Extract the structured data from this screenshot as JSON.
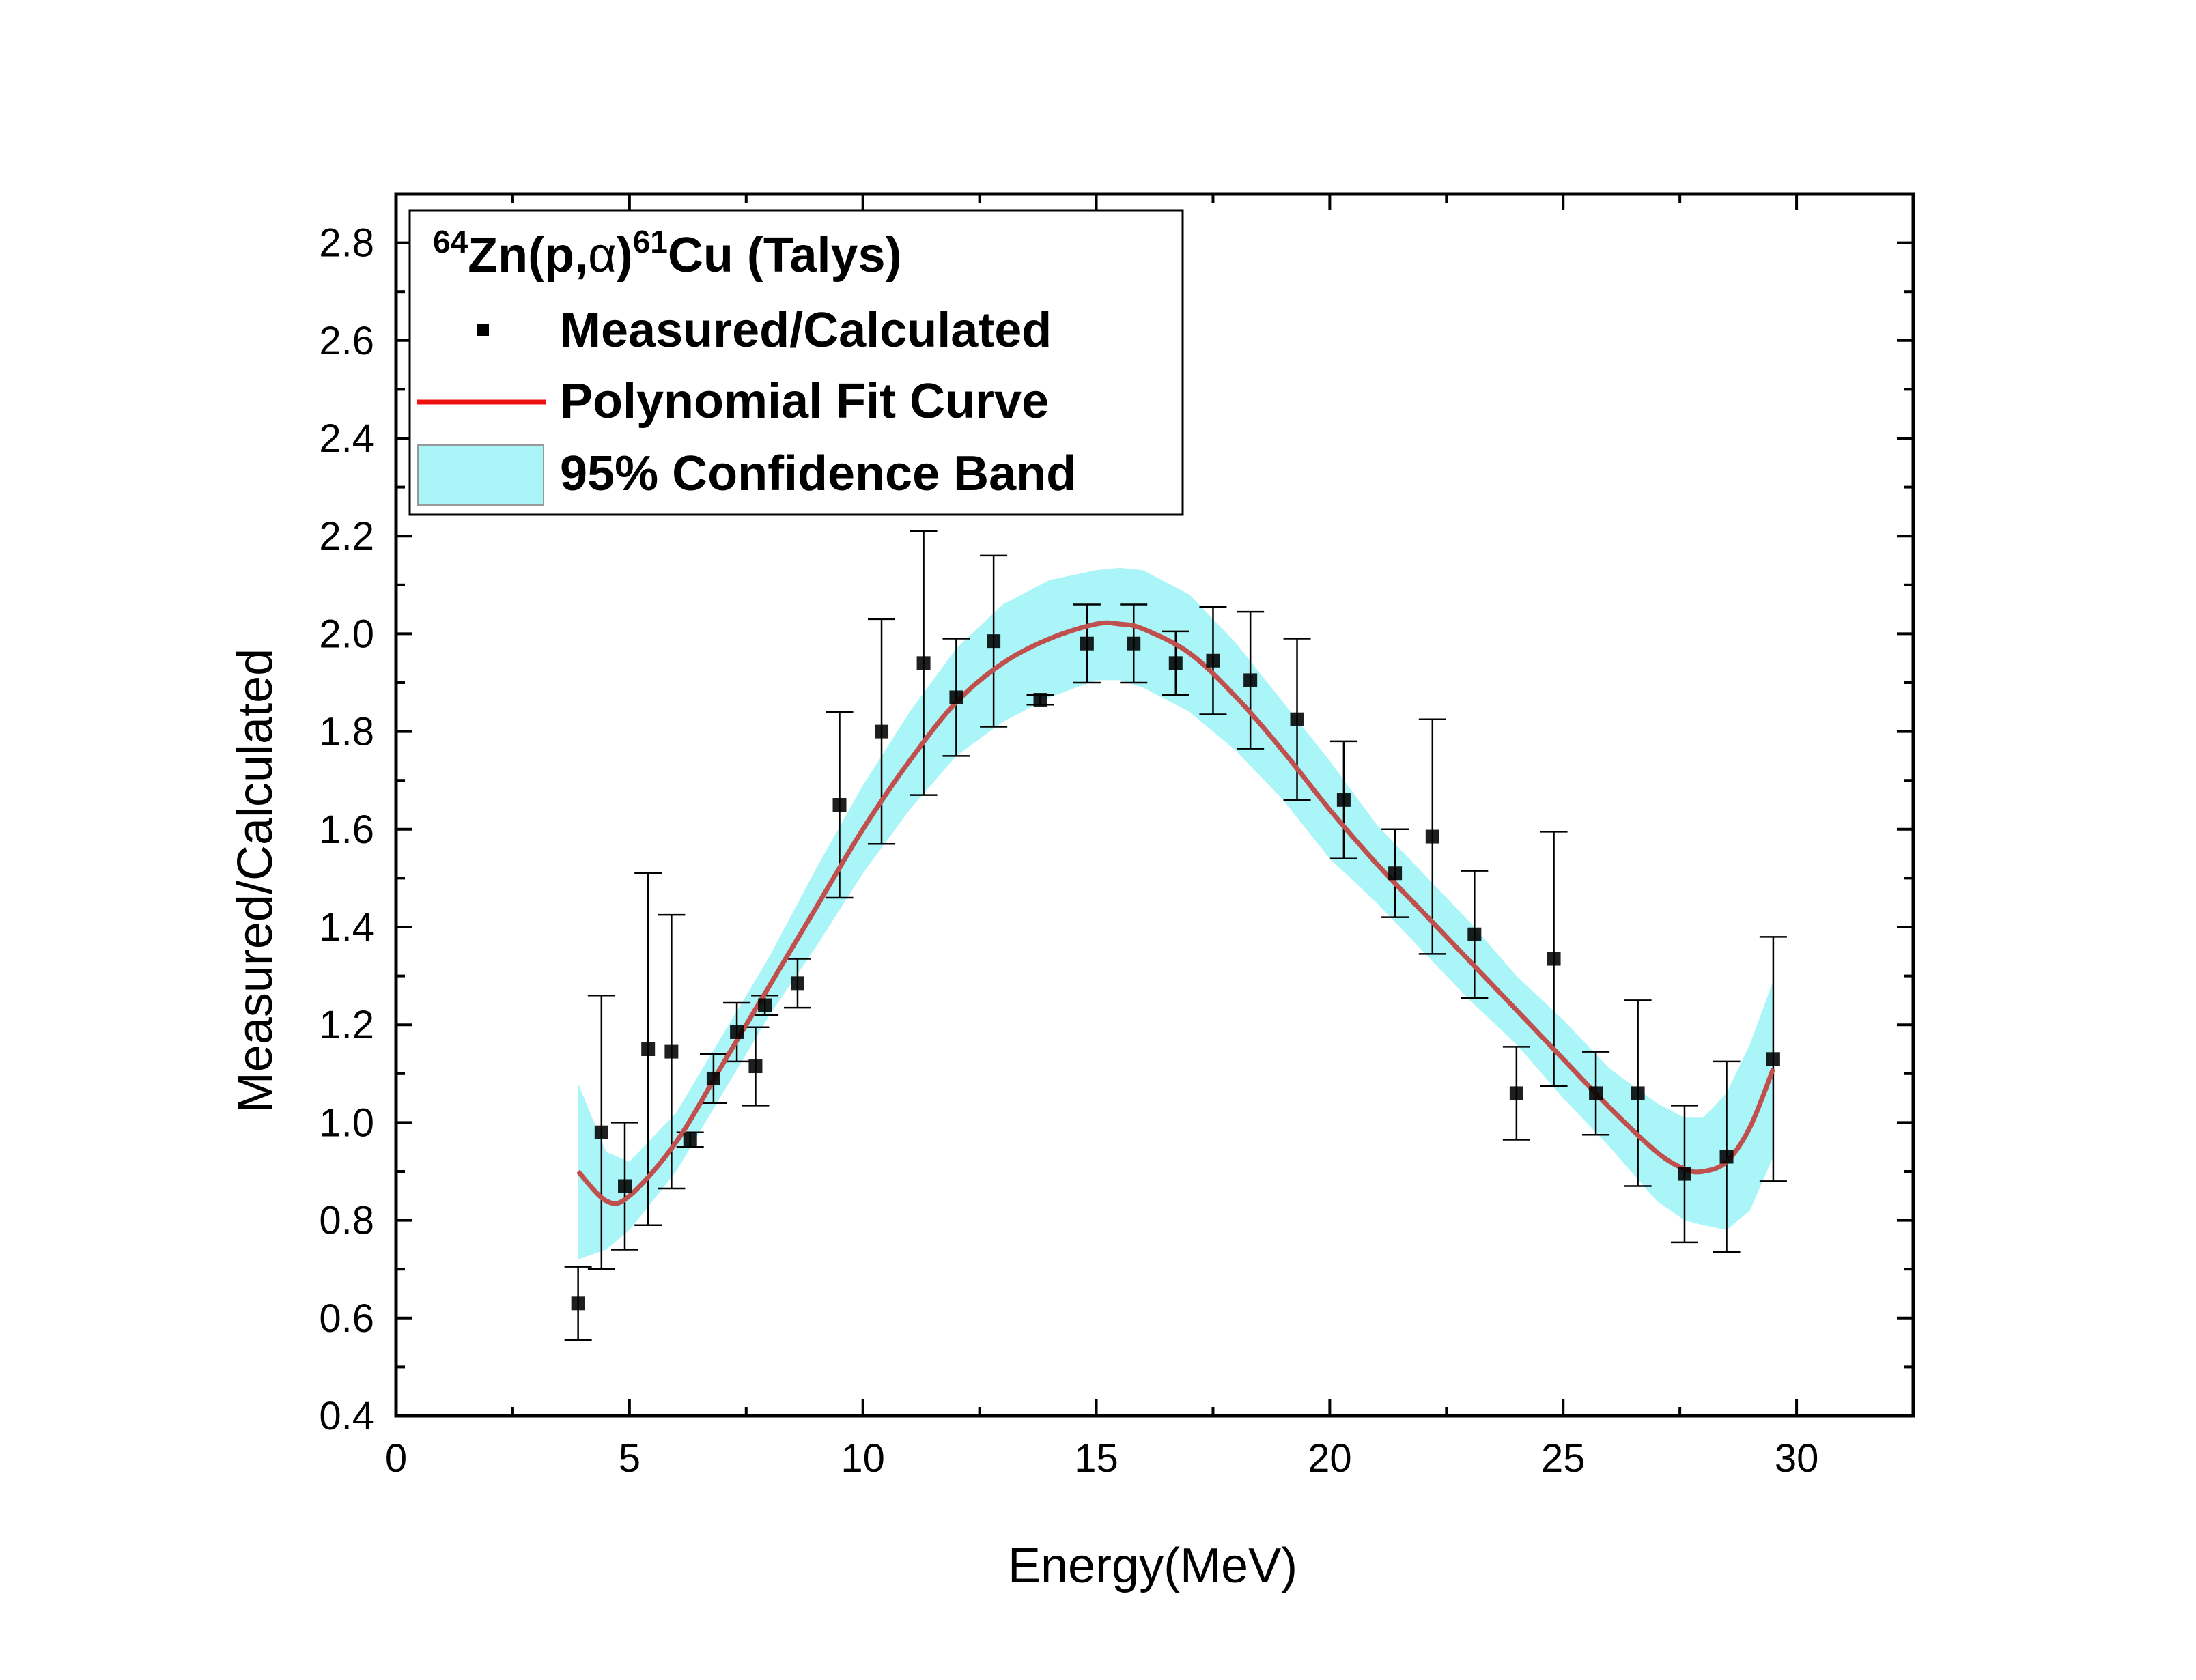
{
  "chart_data": {
    "type": "scatter",
    "xlabel": "Energy(MeV)",
    "ylabel": "Measured/Calculated",
    "xlim": [
      0,
      32.5
    ],
    "ylim": [
      0.4,
      2.9
    ],
    "x_ticks": [
      "0",
      "5",
      "10",
      "15",
      "20",
      "25",
      "30"
    ],
    "y_ticks": [
      "0.4",
      "0.6",
      "0.8",
      "1.0",
      "1.2",
      "1.4",
      "1.6",
      "1.8",
      "2.0",
      "2.2",
      "2.4",
      "2.6",
      "2.8"
    ],
    "legend": {
      "title_parts": {
        "sup1": "64",
        "mid": "Zn(p,",
        "alpha": "α",
        "close": ")",
        "sup2": "61",
        "tail": "Cu (Talys)"
      },
      "entries": [
        "Measured/Calculated",
        "Polynomial Fit Curve",
        "95% Confidence Band"
      ],
      "position": "top-left"
    },
    "colors": {
      "points": "#000000",
      "fit": "#c0504d",
      "fit_legend": "#ee1111",
      "band": "#aaf5f7",
      "band_edge": "#999999"
    },
    "series": [
      {
        "name": "Measured/Calculated",
        "x": [
          3.9,
          4.4,
          4.9,
          5.4,
          5.9,
          6.3,
          6.8,
          7.3,
          7.7,
          7.9,
          8.6,
          9.5,
          10.4,
          11.3,
          12.0,
          12.8,
          13.8,
          14.8,
          15.8,
          16.7,
          17.5,
          18.3,
          19.3,
          20.3,
          21.4,
          22.2,
          23.1,
          24.0,
          24.8,
          25.7,
          26.6,
          27.6,
          28.5,
          29.5
        ],
        "y": [
          0.63,
          0.98,
          0.87,
          1.15,
          1.145,
          0.965,
          1.09,
          1.185,
          1.115,
          1.24,
          1.285,
          1.65,
          1.8,
          1.94,
          1.87,
          1.985,
          1.865,
          1.98,
          1.98,
          1.94,
          1.945,
          1.905,
          1.825,
          1.66,
          1.51,
          1.585,
          1.385,
          1.06,
          1.335,
          1.06,
          1.06,
          0.895,
          0.93,
          1.13
        ],
        "err_low": [
          0.075,
          0.28,
          0.13,
          0.36,
          0.28,
          0.015,
          0.05,
          0.06,
          0.08,
          0.02,
          0.05,
          0.19,
          0.23,
          0.27,
          0.12,
          0.175,
          0.01,
          0.08,
          0.08,
          0.065,
          0.11,
          0.14,
          0.165,
          0.12,
          0.09,
          0.24,
          0.13,
          0.095,
          0.26,
          0.085,
          0.19,
          0.14,
          0.195,
          0.25
        ],
        "err_high": [
          0.075,
          0.28,
          0.13,
          0.36,
          0.28,
          0.015,
          0.05,
          0.06,
          0.08,
          0.02,
          0.05,
          0.19,
          0.23,
          0.27,
          0.12,
          0.175,
          0.01,
          0.08,
          0.08,
          0.065,
          0.11,
          0.14,
          0.165,
          0.12,
          0.09,
          0.24,
          0.13,
          0.095,
          0.26,
          0.085,
          0.19,
          0.14,
          0.195,
          0.25
        ]
      },
      {
        "name": "Polynomial Fit Curve",
        "x": [
          3.9,
          4.5,
          5.0,
          6.0,
          7.0,
          8.0,
          9.0,
          10.0,
          11.0,
          12.0,
          13.0,
          14.0,
          15.0,
          15.5,
          16.0,
          17.0,
          18.0,
          19.0,
          20.0,
          21.0,
          22.0,
          23.0,
          24.0,
          25.0,
          26.0,
          27.0,
          27.6,
          28.0,
          28.5,
          29.0,
          29.5
        ],
        "y": [
          0.9,
          0.84,
          0.85,
          0.96,
          1.12,
          1.28,
          1.44,
          1.6,
          1.74,
          1.86,
          1.94,
          1.99,
          2.02,
          2.02,
          2.01,
          1.96,
          1.87,
          1.76,
          1.64,
          1.53,
          1.43,
          1.33,
          1.23,
          1.13,
          1.03,
          0.94,
          0.905,
          0.9,
          0.92,
          0.99,
          1.11
        ]
      },
      {
        "name": "95% Confidence Band",
        "x": [
          3.9,
          4.5,
          5.0,
          6.0,
          7.0,
          8.0,
          9.0,
          10.0,
          11.0,
          12.0,
          13.0,
          14.0,
          15.0,
          15.5,
          16.0,
          17.0,
          18.0,
          19.0,
          20.0,
          21.0,
          22.0,
          23.0,
          24.0,
          25.0,
          26.0,
          27.0,
          27.6,
          28.0,
          28.5,
          29.0,
          29.5
        ],
        "upper": [
          1.08,
          0.94,
          0.92,
          1.02,
          1.18,
          1.34,
          1.52,
          1.69,
          1.84,
          1.97,
          2.06,
          2.11,
          2.13,
          2.135,
          2.13,
          2.08,
          1.98,
          1.86,
          1.74,
          1.61,
          1.51,
          1.41,
          1.3,
          1.21,
          1.11,
          1.04,
          1.01,
          1.01,
          1.06,
          1.16,
          1.29
        ],
        "lower": [
          0.72,
          0.74,
          0.78,
          0.9,
          1.06,
          1.22,
          1.36,
          1.51,
          1.64,
          1.75,
          1.82,
          1.87,
          1.905,
          1.905,
          1.89,
          1.84,
          1.76,
          1.66,
          1.54,
          1.45,
          1.35,
          1.25,
          1.16,
          1.05,
          0.95,
          0.84,
          0.8,
          0.79,
          0.78,
          0.82,
          0.93
        ]
      }
    ]
  }
}
